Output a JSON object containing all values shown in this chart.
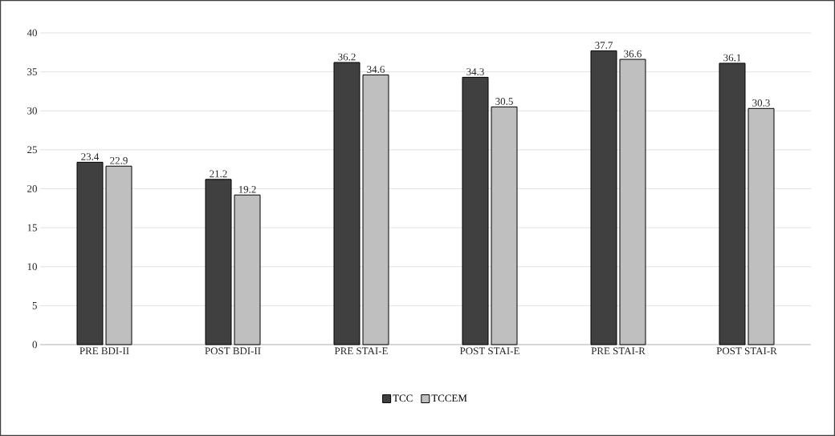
{
  "chart_data": {
    "type": "bar",
    "categories": [
      "PRE BDI-II",
      "POST BDI-II",
      "PRE STAI-E",
      "POST STAI-E",
      "PRE STAI-R",
      "POST STAI-R"
    ],
    "series": [
      {
        "name": "TCC",
        "color": "#404040",
        "values": [
          23.4,
          21.2,
          36.2,
          34.3,
          37.7,
          36.1
        ]
      },
      {
        "name": "TCCEM",
        "color": "#bfbfbf",
        "values": [
          22.9,
          19.2,
          34.6,
          30.5,
          36.6,
          30.3
        ]
      }
    ],
    "ylim": [
      0,
      40
    ],
    "yticks": [
      0,
      5,
      10,
      15,
      20,
      25,
      30,
      35,
      40
    ],
    "grid": "y",
    "legend": "bottom",
    "data_labels": true
  }
}
